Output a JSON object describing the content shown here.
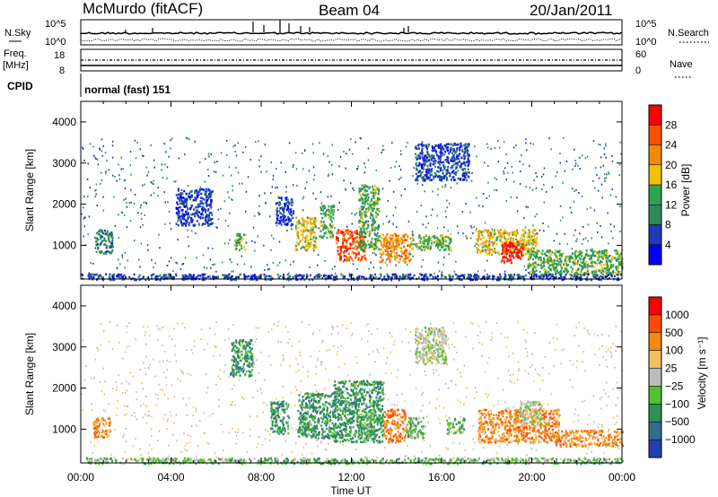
{
  "header": {
    "station": "McMurdo (fitACF)",
    "beam": "Beam 04",
    "date": "20/Jan/2011"
  },
  "top_panels": {
    "nsky_label": "N.Sky",
    "nsky_ticks": [
      "10^5",
      "10^0"
    ],
    "nsearch_label": "N.Search",
    "nsearch_ticks": [
      "10^5",
      "10^0"
    ],
    "freq_label_1": "Freq.",
    "freq_label_2": "[MHz]",
    "freq_ticks": [
      "18",
      "8"
    ],
    "nave_label": "Nave",
    "nave_ticks": [
      "60",
      "0"
    ],
    "cpid_label": "CPID",
    "cpid_value": "normal (fast) 151"
  },
  "chart_data": [
    {
      "type": "heatmap",
      "name": "power",
      "ylabel": "Slant Range [km]",
      "y_ticks": [
        "4000",
        "3000",
        "2000",
        "1000"
      ],
      "y_tick_values": [
        4000,
        3000,
        2000,
        1000
      ],
      "ylim": [
        180,
        4500
      ],
      "xlim_hours": [
        0,
        24
      ],
      "colorbar_label": "Power [dB]",
      "colorbar_ticks": [
        "28",
        "24",
        "20",
        "16",
        "12",
        "8",
        "4"
      ],
      "colorbar_colors": [
        "#0000ff",
        "#1f3bb8",
        "#2f8a5e",
        "#2ea44f",
        "#f2c100",
        "#f08a00",
        "#ff5000",
        "#ff0000"
      ],
      "echo_regions": [
        {
          "h0": 0.6,
          "h1": 1.4,
          "r0": 800,
          "r1": 1400,
          "level": 2
        },
        {
          "h0": 4.2,
          "h1": 5.8,
          "r0": 1500,
          "r1": 2400,
          "level": 1
        },
        {
          "h0": 6.8,
          "h1": 7.3,
          "r0": 900,
          "r1": 1300,
          "level": 3
        },
        {
          "h0": 8.6,
          "h1": 9.4,
          "r0": 1500,
          "r1": 2200,
          "level": 1
        },
        {
          "h0": 9.5,
          "h1": 10.4,
          "r0": 900,
          "r1": 1700,
          "level": 4
        },
        {
          "h0": 10.6,
          "h1": 11.2,
          "r0": 1200,
          "r1": 2000,
          "level": 3
        },
        {
          "h0": 11.3,
          "h1": 12.6,
          "r0": 650,
          "r1": 1400,
          "level": 6
        },
        {
          "h0": 12.3,
          "h1": 13.2,
          "r0": 900,
          "r1": 2500,
          "level": 3
        },
        {
          "h0": 13.2,
          "h1": 14.6,
          "r0": 600,
          "r1": 1300,
          "level": 5
        },
        {
          "h0": 14.6,
          "h1": 16.4,
          "r0": 900,
          "r1": 1300,
          "level": 3
        },
        {
          "h0": 14.8,
          "h1": 17.2,
          "r0": 2600,
          "r1": 3500,
          "level": 1
        },
        {
          "h0": 17.5,
          "h1": 20.2,
          "r0": 800,
          "r1": 1400,
          "level": 4
        },
        {
          "h0": 18.6,
          "h1": 19.6,
          "r0": 600,
          "r1": 1100,
          "level": 7
        },
        {
          "h0": 19.8,
          "h1": 24.0,
          "r0": 300,
          "r1": 900,
          "level": 3
        },
        {
          "h0": 0.0,
          "h1": 24.0,
          "r0": 180,
          "r1": 320,
          "level": 1
        }
      ]
    },
    {
      "type": "heatmap",
      "name": "velocity",
      "ylabel": "Slant Range [km]",
      "y_ticks": [
        "4000",
        "3000",
        "2000",
        "1000"
      ],
      "y_tick_values": [
        4000,
        3000,
        2000,
        1000
      ],
      "ylim": [
        180,
        4500
      ],
      "xlim_hours": [
        0,
        24
      ],
      "xlabel": "Time UT",
      "x_ticks": [
        "00:00",
        "04:00",
        "08:00",
        "12:00",
        "16:00",
        "20:00",
        "00:00"
      ],
      "x_tick_values": [
        0,
        4,
        8,
        12,
        16,
        20,
        24
      ],
      "colorbar_label": "Velocity [m s⁻¹]",
      "colorbar_ticks": [
        "1000",
        "500",
        "100",
        "25",
        "−25",
        "−100",
        "−500",
        "−1000"
      ],
      "colorbar_colors": [
        "#2040b0",
        "#2f6f8a",
        "#2e8f58",
        "#55c030",
        "#bbbbbb",
        "#f2c060",
        "#f08a10",
        "#ff4a00",
        "#ff0000"
      ],
      "echo_regions": [
        {
          "h0": 0.5,
          "h1": 1.3,
          "r0": 800,
          "r1": 1300,
          "level": 6
        },
        {
          "h0": 6.6,
          "h1": 7.6,
          "r0": 2300,
          "r1": 3200,
          "level": 2
        },
        {
          "h0": 8.4,
          "h1": 9.2,
          "r0": 900,
          "r1": 1700,
          "level": 2
        },
        {
          "h0": 9.6,
          "h1": 11.2,
          "r0": 800,
          "r1": 1900,
          "level": 2
        },
        {
          "h0": 11.2,
          "h1": 13.4,
          "r0": 700,
          "r1": 2200,
          "level": 2
        },
        {
          "h0": 12.4,
          "h1": 13.0,
          "r0": 700,
          "r1": 1500,
          "level": 3
        },
        {
          "h0": 13.4,
          "h1": 14.4,
          "r0": 700,
          "r1": 1500,
          "level": 6
        },
        {
          "h0": 14.4,
          "h1": 15.2,
          "r0": 800,
          "r1": 1300,
          "level": 3
        },
        {
          "h0": 14.8,
          "h1": 16.2,
          "r0": 2600,
          "r1": 3500,
          "level": 4
        },
        {
          "h0": 16.2,
          "h1": 17.0,
          "r0": 900,
          "r1": 1300,
          "level": 3
        },
        {
          "h0": 17.6,
          "h1": 21.2,
          "r0": 700,
          "r1": 1500,
          "level": 6
        },
        {
          "h0": 19.4,
          "h1": 20.4,
          "r0": 1100,
          "r1": 1700,
          "level": 4
        },
        {
          "h0": 21.0,
          "h1": 24.0,
          "r0": 600,
          "r1": 1000,
          "level": 6
        },
        {
          "h0": 0.0,
          "h1": 24.0,
          "r0": 180,
          "r1": 320,
          "level": 3
        }
      ]
    }
  ]
}
